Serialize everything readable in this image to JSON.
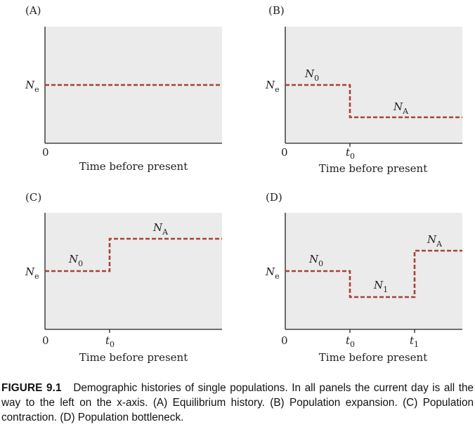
{
  "panels": [
    {
      "label": "(A)",
      "zero": "0",
      "xlabel": "Time before present",
      "ylabel": {
        "main": "N",
        "sub": "e"
      },
      "ticks": [],
      "segments": [
        {
          "from": 0,
          "to": 1,
          "level": 0.5
        }
      ],
      "annotations": []
    },
    {
      "label": "(B)",
      "zero": "0",
      "xlabel": "Time before present",
      "ylabel": {
        "main": "N",
        "sub": "e"
      },
      "ticks": [
        {
          "main": "t",
          "sub": "0",
          "x": 0.36
        }
      ],
      "segments": [
        {
          "from": 0,
          "to": 0.36,
          "level": 0.5
        },
        {
          "from": 0.36,
          "to": 1,
          "level": 0.23
        }
      ],
      "annotations": [
        {
          "main": "N",
          "sub": "0"
        },
        {
          "main": "N",
          "sub": "A"
        }
      ]
    },
    {
      "label": "(C)",
      "zero": "0",
      "xlabel": "Time before present",
      "ylabel": {
        "main": "N",
        "sub": "e"
      },
      "ticks": [
        {
          "main": "t",
          "sub": "0",
          "x": 0.36
        }
      ],
      "segments": [
        {
          "from": 0,
          "to": 0.36,
          "level": 0.5
        },
        {
          "from": 0.36,
          "to": 1,
          "level": 0.77
        }
      ],
      "annotations": [
        {
          "main": "N",
          "sub": "0"
        },
        {
          "main": "N",
          "sub": "A"
        }
      ]
    },
    {
      "label": "(D)",
      "zero": "0",
      "xlabel": "Time before present",
      "ylabel": {
        "main": "N",
        "sub": "e"
      },
      "ticks": [
        {
          "main": "t",
          "sub": "0",
          "x": 0.36
        },
        {
          "main": "t",
          "sub": "1",
          "x": 0.72
        }
      ],
      "segments": [
        {
          "from": 0,
          "to": 0.36,
          "level": 0.5
        },
        {
          "from": 0.36,
          "to": 0.72,
          "level": 0.28
        },
        {
          "from": 0.72,
          "to": 1,
          "level": 0.72
        }
      ],
      "annotations": [
        {
          "main": "N",
          "sub": "0"
        },
        {
          "main": "N",
          "sub": "1"
        },
        {
          "main": "N",
          "sub": "A"
        }
      ]
    }
  ],
  "colors": {
    "panel_fill": "#ebebeb",
    "line": "#a8413a",
    "axis": "#222222"
  },
  "caption": {
    "figure": "FIGURE 9.1",
    "text": "Demographic histories of single populations. In all panels the current day is all the way to the left on the x-axis. (A) Equilibrium history. (B) Population expansion. (C) Population contraction. (D) Population bottleneck."
  }
}
